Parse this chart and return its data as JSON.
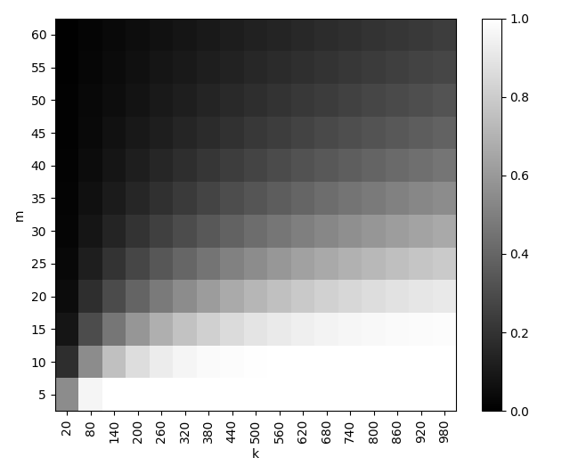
{
  "k_values": [
    20,
    80,
    140,
    200,
    260,
    320,
    380,
    440,
    500,
    560,
    620,
    680,
    740,
    800,
    860,
    920,
    980
  ],
  "m_values": [
    5,
    10,
    15,
    20,
    25,
    30,
    35,
    40,
    45,
    50,
    55,
    60
  ],
  "xlabel": "k",
  "ylabel": "m",
  "vmin": 0.0,
  "vmax": 1.0,
  "cmap": "gray",
  "colorbar_ticks": [
    0.0,
    0.2,
    0.4,
    0.6,
    0.8,
    1.0
  ],
  "formula_scale": 1.0,
  "formula_exponent": 2.0,
  "formula_type": "exp_neg"
}
